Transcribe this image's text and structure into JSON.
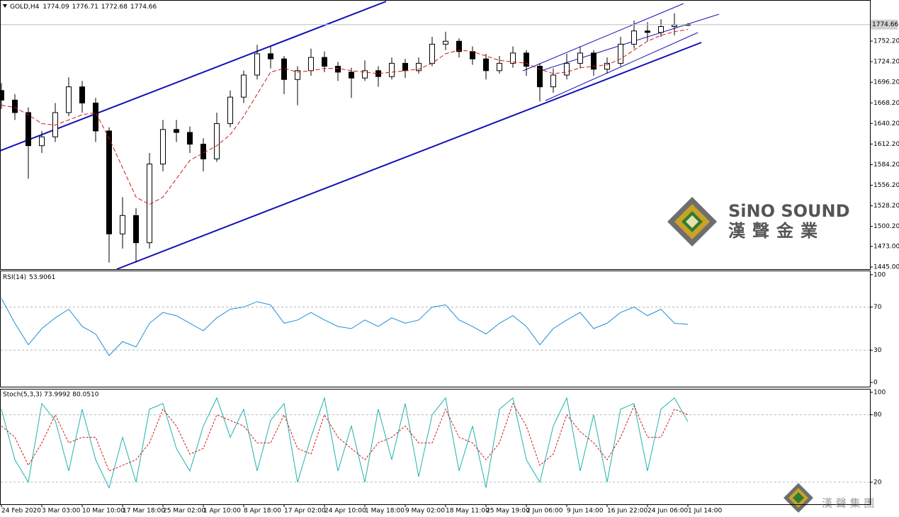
{
  "chart_data": [
    {
      "type": "candlestick",
      "title": "GOLD,H4",
      "categories": [
        "24 Feb 2020",
        null,
        null,
        "3 Mar 03:00",
        null,
        null,
        "10 Mar 10:00",
        null,
        null,
        "17 Mar 18:00",
        null,
        null,
        "25 Mar 02:00",
        null,
        null,
        "1 Apr 10:00",
        null,
        null,
        "8 Apr 18:00",
        null,
        null,
        "17 Apr 02:00",
        null,
        null,
        "24 Apr 10:00",
        null,
        null,
        "1 May 18:00",
        null,
        null,
        "9 May 02:00",
        null,
        null,
        "18 May 11:00",
        null,
        null,
        "25 May 19:00",
        null,
        null,
        "2 Jun 06:00",
        null,
        null,
        "9 Jun 14:00",
        null,
        null,
        "16 Jun 22:00",
        null,
        null,
        "24 Jun 06:00",
        null,
        null,
        "1 Jul 14:00"
      ],
      "open": [
        1685,
        1672,
        1655,
        1610,
        1622,
        1655,
        1690,
        1668,
        1630,
        1490,
        1515,
        1478,
        1585,
        1632,
        1628,
        1612,
        1592,
        1640,
        1676,
        1706,
        1735,
        1728,
        1700,
        1712,
        1730,
        1718,
        1710,
        1702,
        1712,
        1704,
        1722,
        1712,
        1722,
        1748,
        1752,
        1738,
        1728,
        1712,
        1722,
        1736,
        1718,
        1690,
        1706,
        1722,
        1736,
        1714,
        1722,
        1748,
        1766,
        1764,
        1772,
        1774.09
      ],
      "high": [
        1695,
        1680,
        1662,
        1630,
        1668,
        1703,
        1698,
        1675,
        1635,
        1540,
        1525,
        1600,
        1645,
        1645,
        1636,
        1620,
        1655,
        1685,
        1712,
        1747,
        1745,
        1732,
        1718,
        1742,
        1738,
        1724,
        1716,
        1726,
        1718,
        1730,
        1728,
        1730,
        1758,
        1765,
        1756,
        1745,
        1735,
        1732,
        1745,
        1740,
        1722,
        1715,
        1735,
        1745,
        1740,
        1730,
        1758,
        1780,
        1778,
        1782,
        1790,
        1776.71
      ],
      "low": [
        1660,
        1645,
        1565,
        1600,
        1615,
        1650,
        1655,
        1615,
        1451,
        1470,
        1451,
        1470,
        1575,
        1615,
        1600,
        1575,
        1588,
        1635,
        1668,
        1700,
        1715,
        1680,
        1665,
        1705,
        1710,
        1698,
        1675,
        1698,
        1690,
        1700,
        1702,
        1708,
        1718,
        1740,
        1730,
        1720,
        1700,
        1708,
        1716,
        1705,
        1670,
        1682,
        1700,
        1715,
        1705,
        1708,
        1718,
        1742,
        1752,
        1758,
        1760,
        1772.68
      ],
      "close": [
        1672,
        1655,
        1610,
        1622,
        1655,
        1690,
        1668,
        1630,
        1490,
        1515,
        1478,
        1585,
        1632,
        1628,
        1612,
        1592,
        1640,
        1676,
        1706,
        1735,
        1728,
        1700,
        1712,
        1730,
        1718,
        1710,
        1702,
        1712,
        1704,
        1722,
        1712,
        1722,
        1748,
        1752,
        1738,
        1728,
        1712,
        1722,
        1736,
        1718,
        1690,
        1706,
        1722,
        1736,
        1714,
        1722,
        1748,
        1766,
        1764,
        1772,
        1774.09,
        1774.66
      ],
      "moving_average": [
        1665,
        1662,
        1652,
        1640,
        1638,
        1645,
        1652,
        1655,
        1620,
        1580,
        1540,
        1530,
        1540,
        1565,
        1590,
        1600,
        1610,
        1625,
        1650,
        1680,
        1710,
        1715,
        1710,
        1712,
        1715,
        1715,
        1712,
        1710,
        1708,
        1710,
        1712,
        1714,
        1722,
        1735,
        1740,
        1738,
        1732,
        1726,
        1724,
        1722,
        1714,
        1708,
        1710,
        1716,
        1718,
        1720,
        1728,
        1740,
        1752,
        1760,
        1765,
        1768
      ],
      "up_color": "#ffffff",
      "down_color": "#000000",
      "ma_color": "#d01818",
      "ylim": [
        1442.1,
        1808.1
      ],
      "yticks": [
        {
          "value": 1752.2,
          "label": "1752.20"
        },
        {
          "value": 1724.2,
          "label": "1724.20"
        },
        {
          "value": 1696.2,
          "label": "1696.20"
        },
        {
          "value": 1668.2,
          "label": "1668.20"
        },
        {
          "value": 1640.2,
          "label": "1640.20"
        },
        {
          "value": 1612.2,
          "label": "1612.20"
        },
        {
          "value": 1584.2,
          "label": "1584.20"
        },
        {
          "value": 1556.2,
          "label": "1556.20"
        },
        {
          "value": 1528.2,
          "label": "1528.20"
        },
        {
          "value": 1500.2,
          "label": "1500.20"
        },
        {
          "value": 1473,
          "label": "1473.00"
        },
        {
          "value": 1445,
          "label": "1445.00"
        }
      ]
    },
    {
      "type": "line",
      "title": "RSI(14)",
      "color": "#1e8fd6",
      "values": [
        78,
        55,
        35,
        50,
        60,
        68,
        52,
        45,
        25,
        38,
        33,
        55,
        65,
        62,
        55,
        48,
        60,
        68,
        70,
        75,
        72,
        55,
        58,
        65,
        58,
        52,
        50,
        58,
        52,
        60,
        55,
        58,
        70,
        72,
        58,
        52,
        45,
        55,
        62,
        52,
        35,
        50,
        58,
        65,
        50,
        55,
        65,
        70,
        62,
        68,
        55,
        53.9061
      ],
      "ylim": [
        -3.9,
        103.9
      ],
      "yticks": [
        0,
        30,
        70,
        100
      ],
      "levels": [
        30,
        70
      ]
    },
    {
      "type": "line",
      "title": "Stoch(5,3,3) 73.9992 80.0510",
      "series": [
        {
          "color": "#20b2aa",
          "values": [
            85,
            40,
            20,
            90,
            75,
            30,
            85,
            40,
            15,
            60,
            20,
            85,
            90,
            50,
            30,
            70,
            95,
            60,
            85,
            30,
            75,
            90,
            20,
            60,
            95,
            30,
            70,
            20,
            85,
            40,
            90,
            25,
            80,
            95,
            30,
            70,
            15,
            85,
            95,
            40,
            20,
            70,
            95,
            30,
            80,
            20,
            85,
            90,
            30,
            85,
            95,
            73.9992
          ]
        },
        {
          "color": "#d01818",
          "dashed": true,
          "values": [
            70,
            60,
            35,
            55,
            80,
            55,
            60,
            60,
            30,
            35,
            40,
            55,
            85,
            70,
            45,
            50,
            80,
            75,
            70,
            55,
            55,
            80,
            50,
            45,
            80,
            60,
            50,
            40,
            55,
            60,
            70,
            55,
            55,
            85,
            60,
            55,
            40,
            55,
            90,
            70,
            35,
            45,
            80,
            65,
            55,
            40,
            60,
            88,
            60,
            60,
            85,
            80.051
          ]
        }
      ],
      "ylim": [
        0.4,
        103.1
      ],
      "yticks": [
        20,
        80,
        100
      ],
      "levels": [
        20,
        80
      ]
    }
  ],
  "watermark": {
    "brand": "SiNO SOUND",
    "chinese": "漢聲金業",
    "corner": "漢 聲 集 團"
  }
}
